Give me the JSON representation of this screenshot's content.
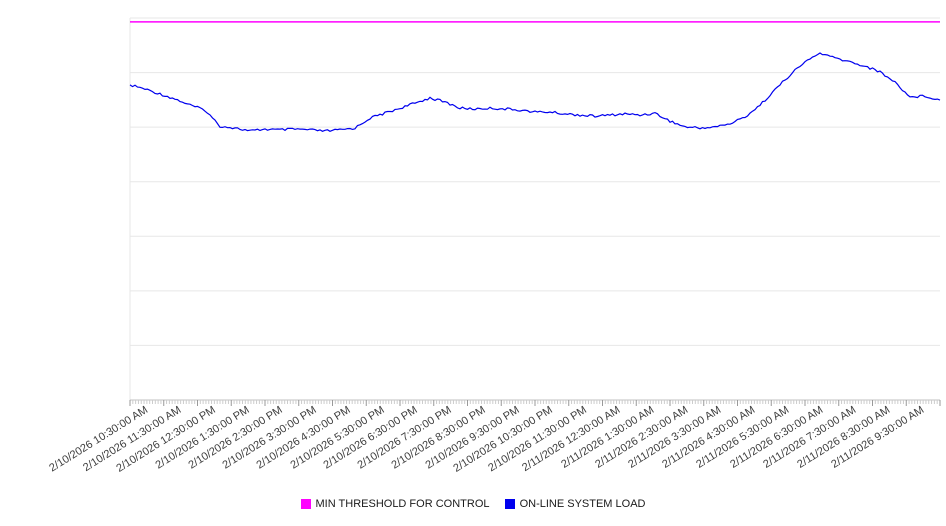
{
  "chart_data": {
    "type": "line",
    "title": "",
    "xlabel": "",
    "ylabel": "",
    "grid": true,
    "y_axis": {
      "min": 0,
      "max": 100,
      "tick_labels_visible": false,
      "gridline_divisions": 7
    },
    "legend_position": "bottom",
    "x_tick_labels": [
      "2/10/2026 10:30:00 AM",
      "2/10/2026 11:30:00 AM",
      "2/10/2026 12:30:00 PM",
      "2/10/2026 1:30:00 PM",
      "2/10/2026 2:30:00 PM",
      "2/10/2026 3:30:00 PM",
      "2/10/2026 4:30:00 PM",
      "2/10/2026 5:30:00 PM",
      "2/10/2026 6:30:00 PM",
      "2/10/2026 7:30:00 PM",
      "2/10/2026 8:30:00 PM",
      "2/10/2026 9:30:00 PM",
      "2/10/2026 10:30:00 PM",
      "2/10/2026 11:30:00 PM",
      "2/11/2026 12:30:00 AM",
      "2/11/2026 1:30:00 AM",
      "2/11/2026 2:30:00 AM",
      "2/11/2026 3:30:00 AM",
      "2/11/2026 4:30:00 AM",
      "2/11/2026 5:30:00 AM",
      "2/11/2026 6:30:00 AM",
      "2/11/2026 7:30:00 AM",
      "2/11/2026 8:30:00 AM",
      "2/11/2026 9:30:00 AM"
    ],
    "series": [
      {
        "name": "MIN THRESHOLD FOR CONTROL",
        "color": "#ff00ff",
        "style": "constant",
        "value": 99
      },
      {
        "name": "ON-LINE SYSTEM LOAD",
        "color": "#0000ee",
        "values": [
          82.5,
          81.4,
          80.1,
          78.8,
          77.2,
          75.9,
          71.7,
          71.2,
          70.4,
          70.9,
          70.7,
          70.9,
          70.7,
          70.4,
          70.7,
          71.2,
          73.8,
          75.1,
          76.4,
          77.7,
          79.1,
          78.0,
          76.4,
          76.2,
          76.4,
          76.2,
          75.9,
          75.4,
          75.4,
          74.9,
          74.6,
          74.3,
          74.6,
          74.9,
          74.6,
          75.1,
          73.0,
          71.5,
          71.2,
          71.5,
          72.3,
          74.1,
          77.2,
          81.2,
          85.1,
          88.5,
          90.8,
          89.5,
          88.5,
          87.4,
          85.9,
          83.2,
          79.3,
          79.6,
          78.5
        ]
      }
    ]
  },
  "colors": {
    "gridline": "#e7e7e7",
    "axis": "#c2c2c2",
    "minor_tick": "#cccccc",
    "major_tick": "#999999"
  }
}
